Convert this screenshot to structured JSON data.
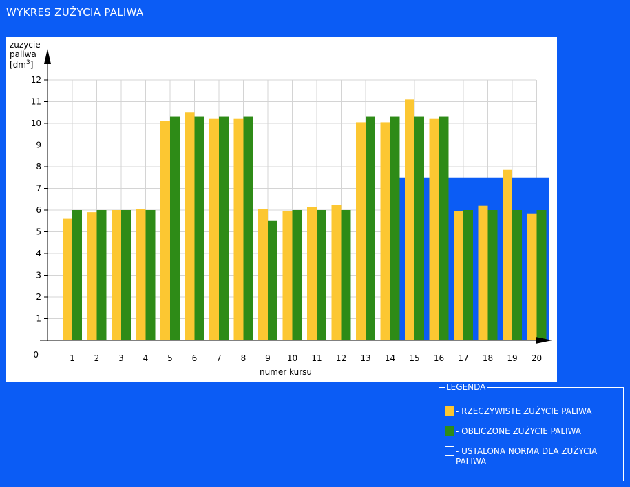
{
  "page": {
    "title": "WYKRES ZUŻYCIA PALIWA"
  },
  "legend": {
    "title": "LEGENDA",
    "items": [
      {
        "label": "- RZECZYWISTE ZUŻYCIE PALIWA",
        "color": "#fcc732",
        "style": "filled"
      },
      {
        "label": "- OBLICZONE ZUŻYCIE PALIWA",
        "color": "#2e8b17",
        "style": "filled"
      },
      {
        "label": "- USTALONA NORMA DLA ZUŻYCIA PALIWA",
        "color": "#0b5cf5",
        "style": "outline"
      }
    ]
  },
  "chart_data": {
    "type": "bar",
    "ylabel_lines": [
      "zuzycie",
      "paliwa",
      "[dm",
      "3",
      "]"
    ],
    "xlabel": "numer kursu",
    "ylim": [
      0,
      12
    ],
    "y_ticks": [
      "0",
      "1",
      "2",
      "3",
      "4",
      "5",
      "6",
      "7",
      "8",
      "9",
      "10",
      "11",
      "12"
    ],
    "categories": [
      "1",
      "2",
      "3",
      "4",
      "5",
      "6",
      "7",
      "8",
      "9",
      "10",
      "11",
      "12",
      "13",
      "14",
      "15",
      "16",
      "17",
      "18",
      "19",
      "20"
    ],
    "grid": true,
    "series": [
      {
        "name": "RZECZYWISTE ZUŻYCIE PALIWA",
        "color": "#fcc732",
        "values": [
          5.6,
          5.9,
          6.0,
          6.05,
          10.1,
          10.5,
          10.2,
          10.2,
          6.05,
          5.95,
          6.15,
          6.25,
          10.05,
          10.05,
          11.1,
          10.2,
          5.95,
          6.2,
          7.85,
          5.85
        ]
      },
      {
        "name": "OBLICZONE ZUŻYCIE PALIWA",
        "color": "#2e8b17",
        "values": [
          6.0,
          6.0,
          6.0,
          6.0,
          10.3,
          10.3,
          10.3,
          10.3,
          5.5,
          6.0,
          6.0,
          6.0,
          10.3,
          10.3,
          10.3,
          10.3,
          6.0,
          6.0,
          6.0,
          6.0
        ]
      }
    ],
    "norm": {
      "name": "USTALONA NORMA DLA ZUŻYCIA PALIWA",
      "color": "#0b5cf5",
      "values": [
        0,
        0,
        0,
        0,
        0,
        0,
        0,
        0,
        0,
        0,
        0,
        0,
        0,
        0,
        7.5,
        7.5,
        7.5,
        7.5,
        7.5,
        7.5
      ]
    }
  }
}
